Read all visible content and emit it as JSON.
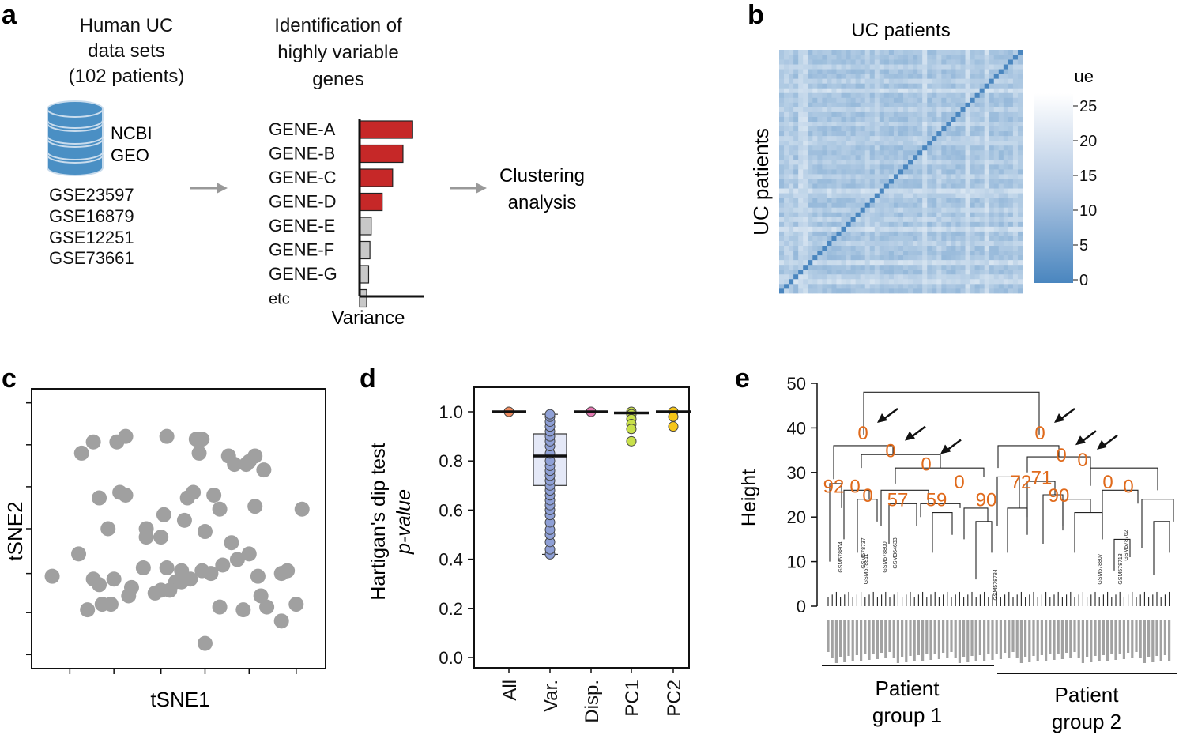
{
  "panel_labels": {
    "a": "a",
    "b": "b",
    "c": "c",
    "d": "d",
    "e": "e"
  },
  "panel_a": {
    "col1_title": [
      "Human UC",
      "data sets",
      "(102 patients)"
    ],
    "db_label": [
      "NCBI",
      "GEO"
    ],
    "datasets": [
      "GSE23597",
      "GSE16879",
      "GSE12251",
      "GSE73661"
    ],
    "col2_title": [
      "Identification of",
      "highly variable",
      "genes"
    ],
    "variance_label": "Variance",
    "clustering_label": [
      "Clustering",
      "analysis"
    ],
    "colors": {
      "highlight": "#c62828",
      "normal": "#c8c8c8",
      "database": "#4a8fc4"
    }
  },
  "panel_b": {
    "title": "UC patients",
    "ylabel": "UC patients",
    "legend_title": "ue",
    "legend_ticks": [
      "25",
      "20",
      "15",
      "10",
      "5",
      "0"
    ],
    "colors": {
      "low": "#4a86bf",
      "high": "#ffffff"
    }
  },
  "panel_c": {
    "xlabel": "tSNE1",
    "ylabel": "tSNE2",
    "point_color": "#a0a0a0"
  },
  "panel_d": {
    "ylabel_line1": "Hartigan's dip test",
    "ylabel_line2": "p-value"
  },
  "panel_e": {
    "ylabel": "Height",
    "group1": [
      "Patient",
      "group 1"
    ],
    "group2": [
      "Patient",
      "group 2"
    ],
    "label_color": "#e06a1b"
  },
  "chart_data": [
    {
      "type": "bar",
      "id": "gene-variance",
      "categories": [
        "GENE-A",
        "GENE-B",
        "GENE-C",
        "GENE-D",
        "GENE-E",
        "GENE-F",
        "GENE-G",
        "etc"
      ],
      "values": [
        82,
        67,
        51,
        35,
        18,
        16,
        14,
        11
      ],
      "highlighted": [
        true,
        true,
        true,
        true,
        false,
        false,
        false,
        false
      ],
      "xlabel": "Variance"
    },
    {
      "type": "scatter",
      "id": "tsne",
      "xlabel": "tSNE1",
      "ylabel": "tSNE2",
      "xlim": [
        0,
        1
      ],
      "ylim": [
        0,
        1
      ],
      "x": [
        0.21,
        0.29,
        0.32,
        0.17,
        0.26,
        0.3,
        0.46,
        0.56,
        0.58,
        0.76,
        0.67,
        0.69,
        0.74,
        0.79,
        0.23,
        0.32,
        0.45,
        0.53,
        0.55,
        0.62,
        0.64,
        0.76,
        0.92,
        0.52,
        0.44,
        0.59,
        0.39,
        0.16,
        0.46,
        0.7,
        0.74,
        0.38,
        0.51,
        0.58,
        0.65,
        0.87,
        0.07,
        0.21,
        0.28,
        0.34,
        0.44,
        0.49,
        0.51,
        0.54,
        0.61,
        0.68,
        0.77,
        0.85,
        0.39,
        0.47,
        0.24,
        0.27,
        0.19,
        0.33,
        0.42,
        0.64,
        0.72,
        0.8,
        0.9,
        0.23,
        0.59,
        0.73,
        0.85,
        0.78,
        0.57
      ],
      "y": [
        0.81,
        0.81,
        0.83,
        0.77,
        0.5,
        0.63,
        0.83,
        0.82,
        0.82,
        0.76,
        0.76,
        0.73,
        0.74,
        0.71,
        0.61,
        0.62,
        0.55,
        0.61,
        0.63,
        0.62,
        0.57,
        0.58,
        0.57,
        0.53,
        0.47,
        0.49,
        0.5,
        0.41,
        0.36,
        0.39,
        0.41,
        0.36,
        0.35,
        0.35,
        0.37,
        0.35,
        0.33,
        0.32,
        0.32,
        0.29,
        0.28,
        0.31,
        0.31,
        0.32,
        0.34,
        0.45,
        0.33,
        0.34,
        0.47,
        0.28,
        0.23,
        0.23,
        0.21,
        0.26,
        0.27,
        0.22,
        0.21,
        0.22,
        0.23,
        0.3,
        0.09,
        0.73,
        0.17,
        0.26,
        0.77
      ]
    },
    {
      "type": "box",
      "id": "dip-test",
      "title": "",
      "ylabel": "Hartigan's dip test p-value",
      "ylim": [
        0,
        1.05
      ],
      "yticks": [
        "0.0",
        "0.2",
        "0.4",
        "0.6",
        "0.8",
        "1.0"
      ],
      "categories": [
        "All",
        "Var.",
        "Disp.",
        "PC1",
        "PC2"
      ],
      "colors": [
        "#f08a5d",
        "#8fa0d6",
        "#e377b0",
        "#c8e04a",
        "#f5c518"
      ],
      "medians": [
        1.0,
        0.82,
        1.0,
        0.995,
        1.0
      ],
      "box_q1_q3": [
        null,
        [
          0.7,
          0.91
        ],
        null,
        null,
        null
      ],
      "whiskers": [
        null,
        [
          0.42,
          0.99
        ],
        null,
        null,
        null
      ],
      "points": [
        [
          1.0
        ],
        [
          0.42,
          0.44,
          0.47,
          0.5,
          0.52,
          0.55,
          0.58,
          0.6,
          0.62,
          0.64,
          0.66,
          0.68,
          0.7,
          0.72,
          0.74,
          0.76,
          0.78,
          0.8,
          0.83,
          0.86,
          0.88,
          0.9,
          0.92,
          0.94,
          0.96,
          0.98,
          0.99
        ],
        [
          1.0
        ],
        [
          1.0,
          0.99,
          0.97,
          0.95,
          0.93,
          0.88
        ],
        [
          1.0,
          0.98,
          0.94
        ]
      ]
    },
    {
      "type": "dendrogram",
      "id": "hclust",
      "ylabel": "Height",
      "ylim": [
        0,
        50
      ],
      "yticks": [
        "0",
        "10",
        "20",
        "30",
        "40",
        "50"
      ],
      "root_height": 48,
      "node_labels": [
        {
          "text": "0",
          "height": 39,
          "side": "left",
          "arrow": true
        },
        {
          "text": "0",
          "height": 35,
          "side": "left",
          "arrow": true
        },
        {
          "text": "0",
          "height": 32,
          "side": "left",
          "arrow": true
        },
        {
          "text": "92",
          "height": 27,
          "side": "left"
        },
        {
          "text": "0",
          "height": 27,
          "side": "left"
        },
        {
          "text": "0",
          "height": 25,
          "side": "left"
        },
        {
          "text": "57",
          "height": 24,
          "side": "left"
        },
        {
          "text": "59",
          "height": 24,
          "side": "left"
        },
        {
          "text": "0",
          "height": 28,
          "side": "left"
        },
        {
          "text": "90",
          "height": 24,
          "side": "left"
        },
        {
          "text": "0",
          "height": 39,
          "side": "right",
          "arrow": true
        },
        {
          "text": "0",
          "height": 34,
          "side": "right",
          "arrow": true
        },
        {
          "text": "0",
          "height": 33,
          "side": "right",
          "arrow": true
        },
        {
          "text": "72",
          "height": 28,
          "side": "right"
        },
        {
          "text": "71",
          "height": 29,
          "side": "right"
        },
        {
          "text": "90",
          "height": 25,
          "side": "right"
        },
        {
          "text": "0",
          "height": 28,
          "side": "right"
        },
        {
          "text": "0",
          "height": 27,
          "side": "right"
        }
      ],
      "leaf_labels": [
        "GSM578804",
        "GSM578737",
        "GSM578811",
        "GSM578800",
        "GSM364633",
        "GSM578784",
        "GSM578807",
        "GSM578713",
        "GSM578762"
      ]
    }
  ]
}
